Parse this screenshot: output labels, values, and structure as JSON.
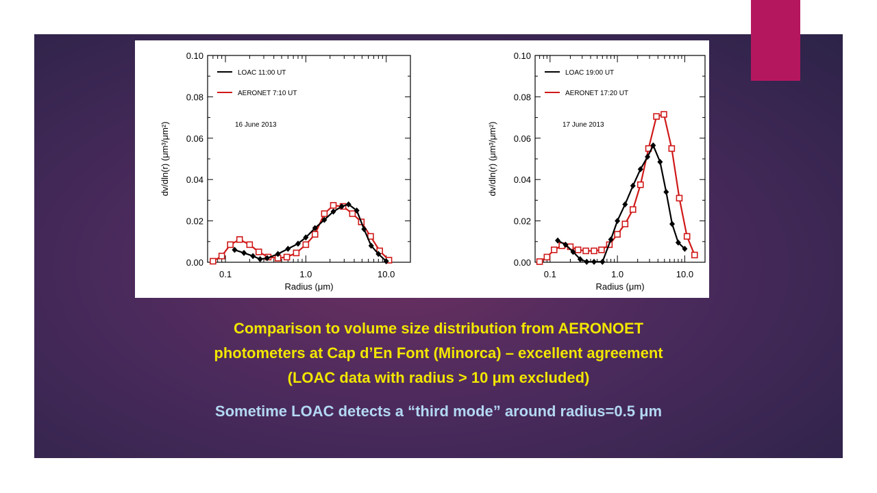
{
  "caption": {
    "line1": "Comparison to volume size distribution from AERONOET",
    "line2": "photometers at Cap d’En Font (Minorca) – excellent agreement",
    "line3": "(LOAC data with radius > 10 μm excluded)",
    "note": "Sometime LOAC detects a “third mode” around radius=0.5 μm"
  },
  "colors": {
    "accent": "#b5175f",
    "caption_yellow": "#f2e600",
    "caption_blue": "#b3d8f2",
    "loac": "#000000",
    "aeronet": "#d01818"
  },
  "chart_data": [
    {
      "type": "line",
      "xlabel": "Radius (μm)",
      "ylabel": "dv/dln(r) (μm³/μm²)",
      "x_scale": "log",
      "xlim": [
        0.06,
        20
      ],
      "ylim": [
        0,
        0.1
      ],
      "x_ticks": [
        "0.1",
        "1.0",
        "10.0"
      ],
      "y_ticks": [
        "0.00",
        "0.02",
        "0.04",
        "0.06",
        "0.08",
        "0.10"
      ],
      "annotation": "16 June 2013",
      "series": [
        {
          "name": "LOAC 11:00 UT",
          "color": "#000000",
          "marker": "diamond",
          "x": [
            0.13,
            0.17,
            0.22,
            0.27,
            0.33,
            0.45,
            0.6,
            0.8,
            1.0,
            1.3,
            1.7,
            2.2,
            2.8,
            3.4,
            4.3,
            5.3,
            6.5,
            8.0,
            10.0
          ],
          "y": [
            0.006,
            0.0045,
            0.003,
            0.0015,
            0.002,
            0.004,
            0.0065,
            0.009,
            0.012,
            0.0165,
            0.0205,
            0.0245,
            0.027,
            0.028,
            0.025,
            0.016,
            0.008,
            0.004,
            0.0005
          ]
        },
        {
          "name": "AERONET 7:10 UT",
          "color": "#d01818",
          "marker": "square",
          "x": [
            0.07,
            0.09,
            0.115,
            0.15,
            0.2,
            0.26,
            0.34,
            0.45,
            0.58,
            0.76,
            1.0,
            1.3,
            1.7,
            2.2,
            2.9,
            3.8,
            4.9,
            6.4,
            8.3,
            10.8
          ],
          "y": [
            0.0005,
            0.003,
            0.0085,
            0.011,
            0.0085,
            0.005,
            0.0025,
            0.002,
            0.0025,
            0.0045,
            0.0085,
            0.0135,
            0.0235,
            0.0275,
            0.027,
            0.0235,
            0.0195,
            0.0125,
            0.0055,
            0.001
          ]
        }
      ]
    },
    {
      "type": "line",
      "xlabel": "Radius (μm)",
      "ylabel": "dv/dln(r) (μm³/μm²)",
      "x_scale": "log",
      "xlim": [
        0.06,
        20
      ],
      "ylim": [
        0,
        0.1
      ],
      "x_ticks": [
        "0.1",
        "1.0",
        "10.0"
      ],
      "y_ticks": [
        "0.00",
        "0.02",
        "0.04",
        "0.06",
        "0.08",
        "0.10"
      ],
      "annotation": "17 June 2013",
      "series": [
        {
          "name": "LOAC 19:00 UT",
          "color": "#000000",
          "marker": "diamond",
          "x": [
            0.13,
            0.17,
            0.22,
            0.28,
            0.35,
            0.45,
            0.6,
            0.8,
            1.0,
            1.3,
            1.7,
            2.2,
            2.8,
            3.4,
            4.3,
            5.3,
            6.5,
            8.0,
            10.0
          ],
          "y": [
            0.0105,
            0.0085,
            0.005,
            0.0015,
            0.0002,
            0.0002,
            0.0002,
            0.011,
            0.02,
            0.028,
            0.037,
            0.045,
            0.051,
            0.0565,
            0.0485,
            0.034,
            0.0185,
            0.0095,
            0.0065
          ]
        },
        {
          "name": "AERONET 17:20 UT",
          "color": "#d01818",
          "marker": "square",
          "x": [
            0.07,
            0.09,
            0.115,
            0.15,
            0.2,
            0.26,
            0.34,
            0.45,
            0.58,
            0.76,
            1.0,
            1.3,
            1.7,
            2.2,
            2.9,
            3.8,
            4.9,
            6.4,
            8.3,
            10.8,
            14.0
          ],
          "y": [
            0.0003,
            0.0025,
            0.006,
            0.008,
            0.0075,
            0.006,
            0.0055,
            0.0055,
            0.006,
            0.0085,
            0.0135,
            0.0185,
            0.0255,
            0.0375,
            0.055,
            0.0705,
            0.0715,
            0.055,
            0.031,
            0.0125,
            0.0035
          ]
        }
      ]
    }
  ]
}
